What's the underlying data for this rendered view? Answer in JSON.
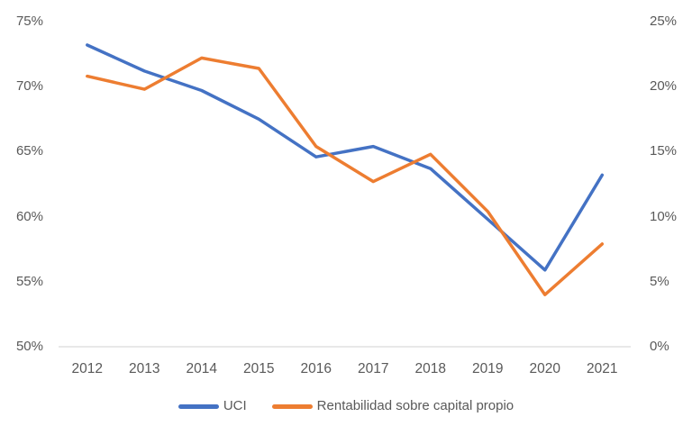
{
  "chart_data": {
    "type": "line",
    "title": "",
    "categories": [
      "2012",
      "2013",
      "2014",
      "2015",
      "2016",
      "2017",
      "2018",
      "2019",
      "2020",
      "2021"
    ],
    "series": [
      {
        "name": "UCI",
        "axis": "left",
        "color": "#4472C4",
        "values": [
          73.2,
          71.2,
          69.7,
          67.5,
          64.6,
          65.4,
          63.7,
          59.8,
          55.9,
          63.2
        ]
      },
      {
        "name": "Rentabilidad sobre capital propio",
        "axis": "right",
        "color": "#ED7D31",
        "values": [
          20.8,
          19.8,
          22.2,
          21.4,
          15.4,
          12.7,
          14.8,
          10.4,
          4.0,
          7.9
        ]
      }
    ],
    "left_axis": {
      "min": 50,
      "max": 75,
      "step": 5,
      "tick_labels": [
        "50%",
        "55%",
        "60%",
        "65%",
        "70%",
        "75%"
      ]
    },
    "right_axis": {
      "min": 0,
      "max": 25,
      "step": 5,
      "tick_labels": [
        "0%",
        "5%",
        "10%",
        "15%",
        "20%",
        "25%"
      ]
    },
    "grid": "bottom-axis-line-only",
    "legend_position": "bottom",
    "axis_line_color": "#D9D9D9",
    "label_color": "#595959"
  }
}
